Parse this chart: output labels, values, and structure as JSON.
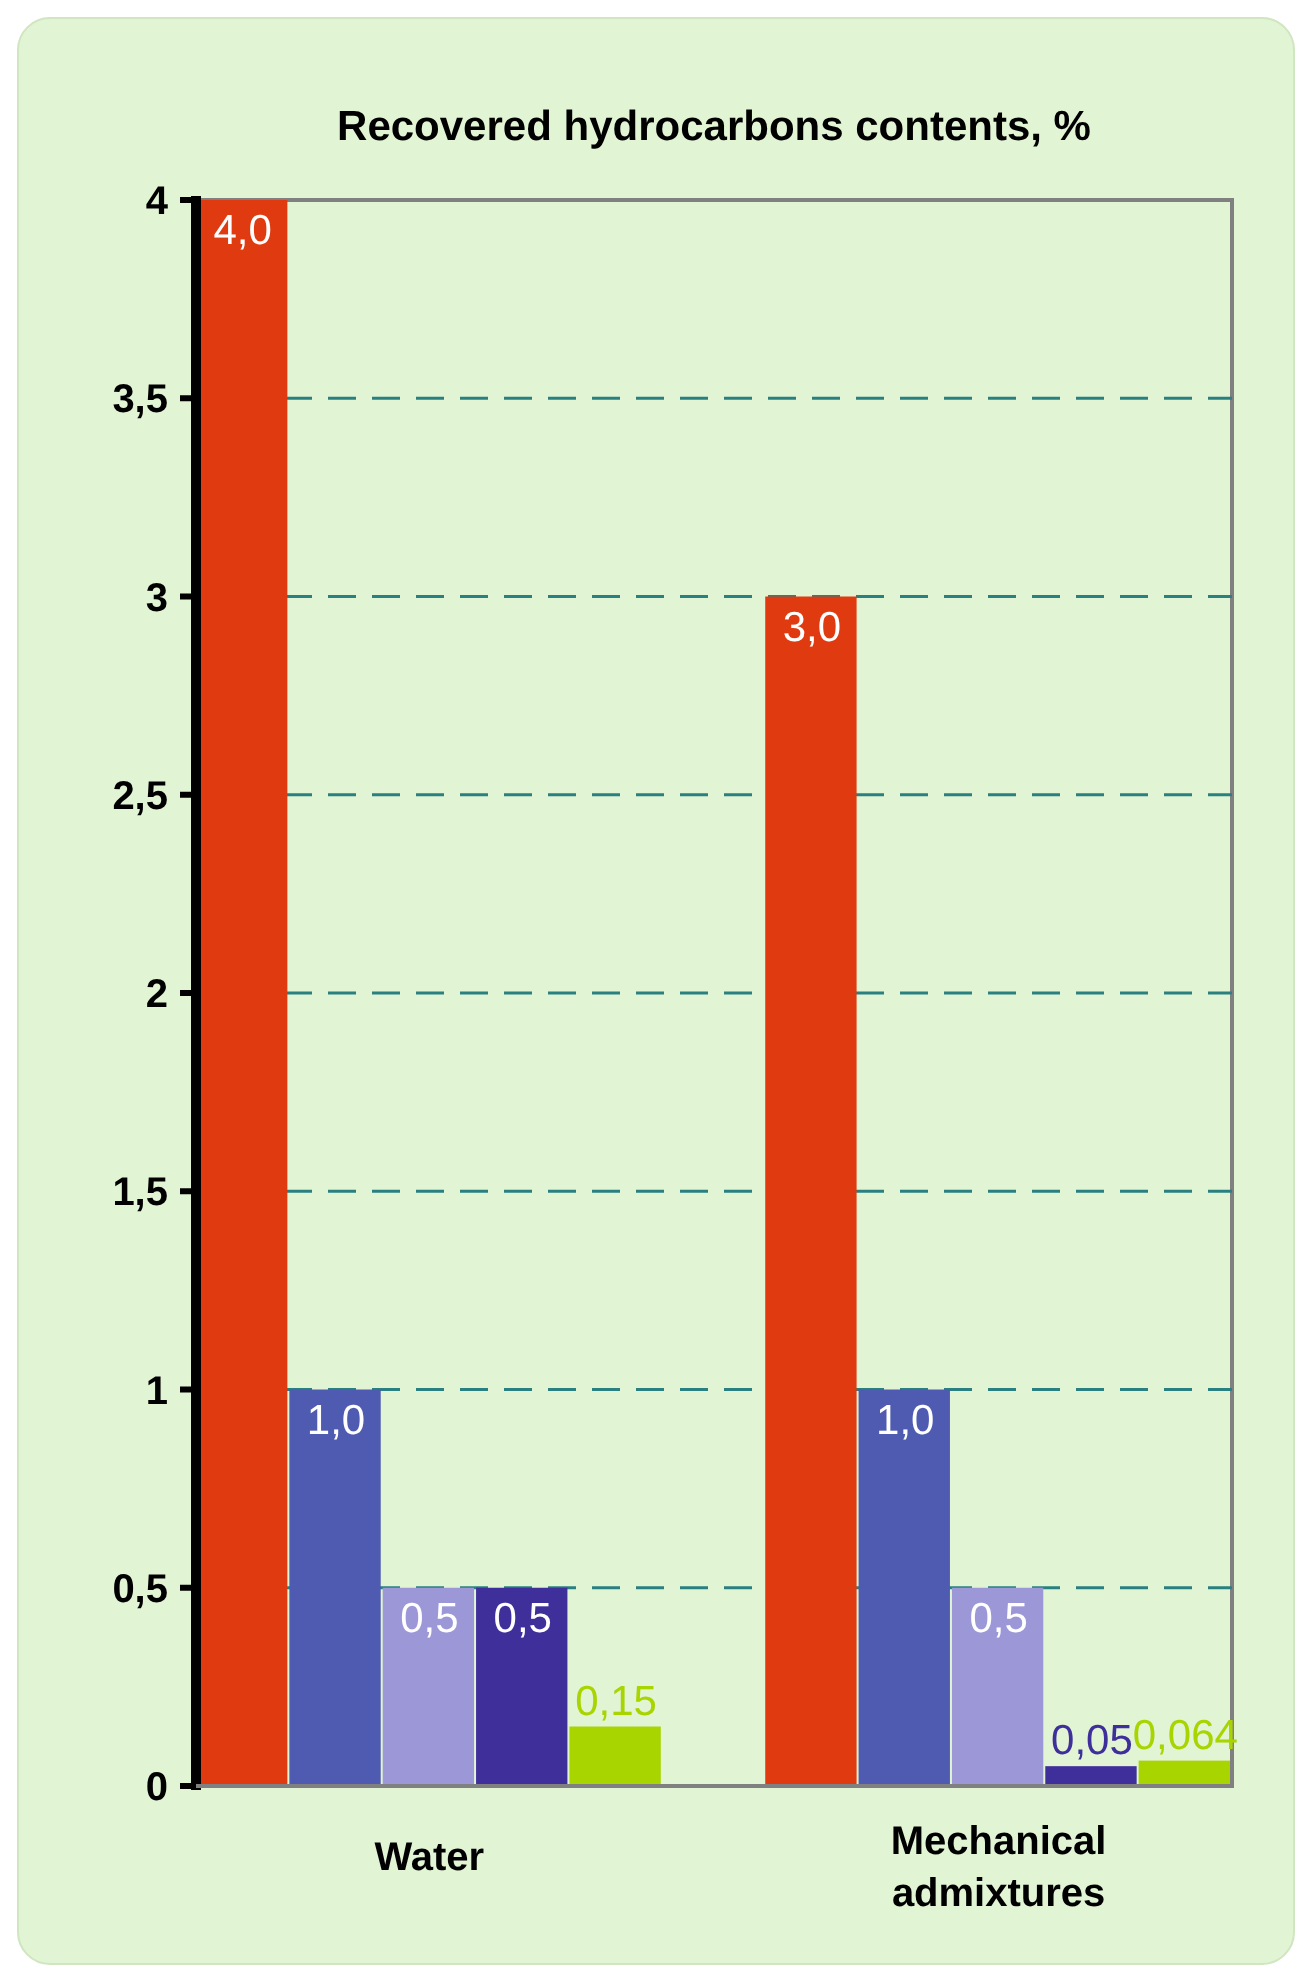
{
  "chart_data": {
    "type": "bar",
    "title": "Recovered hydrocarbons contents, %",
    "categories": [
      "Water",
      "Mechanical admixtures"
    ],
    "series": [
      {
        "color": "#e03a10",
        "values": [
          4.0,
          3.0
        ],
        "value_labels": [
          "4,0",
          "3,0"
        ]
      },
      {
        "color": "#4f5bb0",
        "values": [
          1.0,
          1.0
        ],
        "value_labels": [
          "1,0",
          "1,0"
        ]
      },
      {
        "color": "#9c98d8",
        "values": [
          0.5,
          0.5
        ],
        "value_labels": [
          "0,5",
          "0,5"
        ]
      },
      {
        "color": "#3f2f9a",
        "values": [
          0.5,
          0.05
        ],
        "value_labels": [
          "0,5",
          "0,05"
        ]
      },
      {
        "color": "#a8d400",
        "values": [
          0.15,
          0.064
        ],
        "value_labels": [
          "0,15",
          "0,064"
        ]
      }
    ],
    "ylim": [
      0,
      4
    ],
    "yticks": [
      0,
      {
        "value": 0.5,
        "label": "0,5"
      },
      1,
      {
        "value": 1.5,
        "label": "1,5"
      },
      2,
      {
        "value": 2.5,
        "label": "2,5"
      },
      3,
      {
        "value": 3.5,
        "label": "3,5"
      },
      4
    ],
    "grid": "y"
  }
}
